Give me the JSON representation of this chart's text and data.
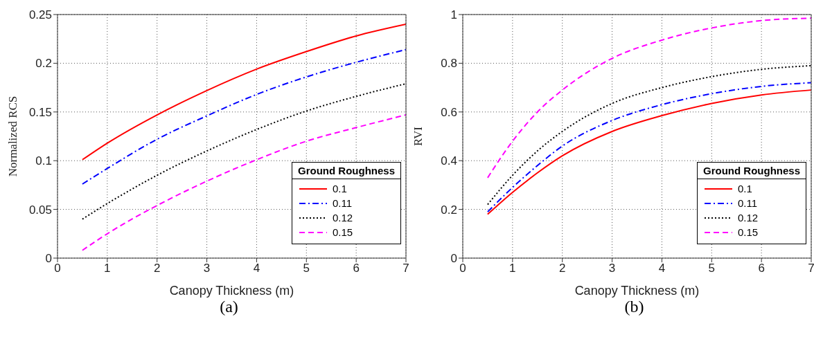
{
  "chart_data": [
    {
      "type": "line",
      "xlabel": "Canopy Thickness (m)",
      "ylabel": "Normalized RCS",
      "legend_title": "Ground Roughness",
      "legend": "bottom right",
      "grid": true,
      "marker": "none",
      "annotations": [
        "(a)"
      ],
      "x": [
        0.5,
        1,
        2,
        3,
        4,
        5,
        6,
        7
      ],
      "xlim": [
        0,
        7
      ],
      "xticks": [
        0,
        1,
        2,
        3,
        4,
        5,
        6,
        7
      ],
      "ylim": [
        0,
        0.25
      ],
      "yticks": [
        0,
        0.05,
        0.1,
        0.15,
        0.2,
        0.25
      ],
      "series": [
        {
          "name": "0.1",
          "color": "#ff0000",
          "line_style": "solid",
          "values": [
            0.101,
            0.118,
            0.147,
            0.172,
            0.194,
            0.212,
            0.228,
            0.24
          ]
        },
        {
          "name": "0.11",
          "color": "#0000ff",
          "line_style": "dashdot",
          "values": [
            0.076,
            0.092,
            0.122,
            0.146,
            0.168,
            0.186,
            0.201,
            0.214
          ]
        },
        {
          "name": "0.12",
          "color": "#000000",
          "line_style": "dotted",
          "values": [
            0.04,
            0.056,
            0.085,
            0.11,
            0.132,
            0.151,
            0.166,
            0.179
          ]
        },
        {
          "name": "0.15",
          "color": "#ff00ff",
          "line_style": "dashed",
          "values": [
            0.008,
            0.025,
            0.054,
            0.079,
            0.101,
            0.12,
            0.134,
            0.147
          ]
        }
      ]
    },
    {
      "type": "line",
      "xlabel": "Canopy Thickness (m)",
      "ylabel": "RVI",
      "legend_title": "Ground Roughness",
      "legend": "bottom right",
      "grid": true,
      "marker": "none",
      "annotations": [
        "(b)"
      ],
      "x": [
        0.5,
        1,
        1.5,
        2,
        3,
        4,
        5,
        6,
        7
      ],
      "xlim": [
        0,
        7
      ],
      "xticks": [
        0,
        1,
        2,
        3,
        4,
        5,
        6,
        7
      ],
      "ylim": [
        0,
        1
      ],
      "yticks": [
        0,
        0.2,
        0.4,
        0.6,
        0.8,
        1
      ],
      "series": [
        {
          "name": "0.1",
          "color": "#ff0000",
          "line_style": "solid",
          "values": [
            0.18,
            0.27,
            0.35,
            0.42,
            0.52,
            0.585,
            0.635,
            0.67,
            0.69
          ]
        },
        {
          "name": "0.11",
          "color": "#0000ff",
          "line_style": "dashdot",
          "values": [
            0.19,
            0.29,
            0.38,
            0.46,
            0.565,
            0.63,
            0.675,
            0.705,
            0.72
          ]
        },
        {
          "name": "0.12",
          "color": "#000000",
          "line_style": "dotted",
          "values": [
            0.22,
            0.34,
            0.44,
            0.52,
            0.635,
            0.7,
            0.745,
            0.775,
            0.79
          ]
        },
        {
          "name": "0.15",
          "color": "#ff00ff",
          "line_style": "dashed",
          "values": [
            0.33,
            0.48,
            0.6,
            0.69,
            0.82,
            0.895,
            0.945,
            0.975,
            0.985
          ]
        }
      ]
    }
  ]
}
